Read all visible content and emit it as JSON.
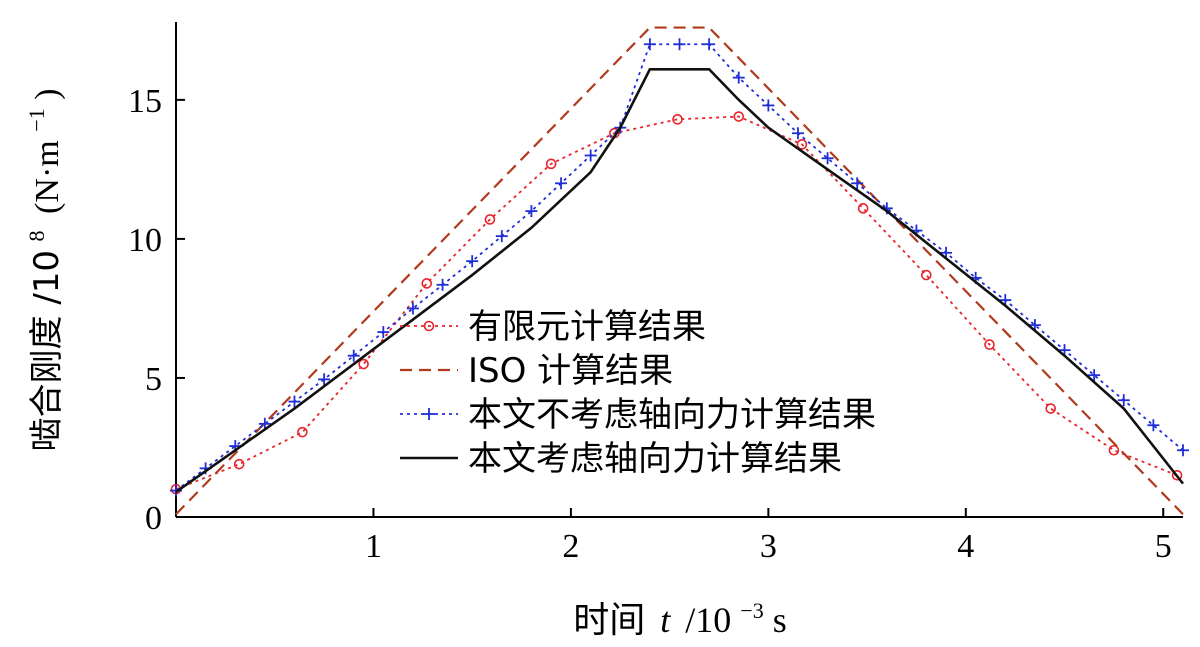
{
  "chart_data": {
    "type": "line",
    "xlabel_prefix": "时间",
    "xlabel_var": "t",
    "xlabel_unit": "/10",
    "xlabel_exp": "−3",
    "xlabel_suffix": "s",
    "ylabel_prefix": "啮合刚度 /10",
    "ylabel_exp": "8",
    "ylabel_unit": "(N·m",
    "ylabel_unit_exp": "−1",
    "ylabel_close": ")",
    "xlim": [
      0,
      5.1
    ],
    "ylim": [
      0,
      17.8
    ],
    "xticks": [
      1,
      2,
      3,
      4,
      5
    ],
    "yticks": [
      0,
      5,
      10,
      15
    ],
    "grid": false,
    "legend_position": "center-bottom",
    "series": [
      {
        "name": "有限元计算结果",
        "color": "#e8242c",
        "style": "dotted",
        "marker": "circle",
        "x": [
          0,
          0.32,
          0.64,
          0.95,
          1.27,
          1.59,
          1.9,
          2.22,
          2.54,
          2.85,
          3.17,
          3.48,
          3.8,
          4.12,
          4.43,
          4.75,
          5.07
        ],
        "y": [
          1.0,
          1.9,
          3.05,
          5.5,
          8.4,
          10.7,
          12.7,
          13.8,
          14.3,
          14.4,
          13.4,
          11.1,
          8.7,
          6.2,
          3.9,
          2.4,
          1.5
        ]
      },
      {
        "name": "ISO 计算结果",
        "color": "#b03a1c",
        "style": "dashed",
        "marker": "none",
        "x": [
          0,
          2.4,
          2.7,
          5.1
        ],
        "y": [
          0.1,
          17.6,
          17.6,
          0.1
        ]
      },
      {
        "name": "本文不考虑轴向力计算结果",
        "color": "#1f2ed6",
        "style": "dotted",
        "marker": "plus",
        "x": [
          0,
          0.15,
          0.3,
          0.45,
          0.6,
          0.75,
          0.9,
          1.05,
          1.2,
          1.35,
          1.5,
          1.65,
          1.8,
          1.95,
          2.1,
          2.25,
          2.4,
          2.55,
          2.7,
          2.85,
          3.0,
          3.15,
          3.3,
          3.45,
          3.6,
          3.75,
          3.9,
          4.05,
          4.2,
          4.35,
          4.5,
          4.65,
          4.8,
          4.95,
          5.1
        ],
        "y": [
          0.95,
          1.75,
          2.55,
          3.35,
          4.15,
          4.95,
          5.8,
          6.65,
          7.5,
          8.35,
          9.2,
          10.1,
          11.0,
          12.0,
          13.0,
          14.0,
          17.0,
          17.0,
          17.0,
          15.8,
          14.8,
          13.8,
          12.9,
          12.0,
          11.1,
          10.3,
          9.5,
          8.6,
          7.8,
          6.9,
          6.0,
          5.1,
          4.2,
          3.3,
          2.4
        ]
      },
      {
        "name": "本文考虑轴向力计算结果",
        "color": "#111111",
        "style": "solid",
        "marker": "none",
        "x": [
          0,
          0.3,
          0.6,
          0.9,
          1.2,
          1.5,
          1.8,
          2.1,
          2.25,
          2.4,
          2.55,
          2.7,
          2.85,
          3.0,
          3.3,
          3.6,
          3.9,
          4.2,
          4.5,
          4.8,
          5.1
        ],
        "y": [
          0.9,
          2.4,
          3.9,
          5.5,
          7.1,
          8.7,
          10.4,
          12.4,
          14.0,
          16.1,
          16.1,
          16.1,
          15.0,
          14.0,
          12.5,
          11.0,
          9.3,
          7.6,
          5.8,
          3.9,
          1.2
        ]
      }
    ]
  }
}
